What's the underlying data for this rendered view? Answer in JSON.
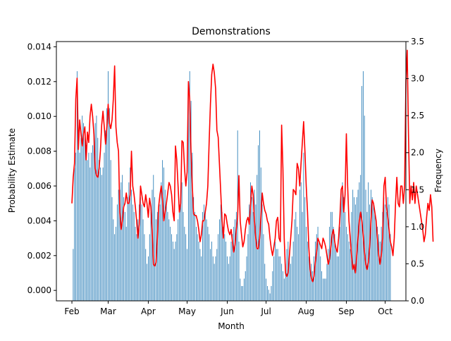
{
  "chart_data": {
    "type": "bar+line",
    "title": "Demonstrations",
    "xlabel": "Month",
    "ylabel_left": "Probability Estimate",
    "ylabel_right": "Frequency",
    "x_tick_labels": [
      "Feb",
      "Mar",
      "Apr",
      "May",
      "Jun",
      "Jul",
      "Aug",
      "Sep",
      "Oct"
    ],
    "x_tick_days": [
      0,
      28,
      59,
      89,
      120,
      150,
      181,
      212,
      242
    ],
    "left_axis": {
      "ylim": [
        -0.0006,
        0.0143
      ],
      "ticks": [
        0.0,
        0.002,
        0.004,
        0.006,
        0.008,
        0.01,
        0.012,
        0.014
      ],
      "tick_labels": [
        "0.000",
        "0.002",
        "0.004",
        "0.006",
        "0.008",
        "0.010",
        "0.012",
        "0.014"
      ]
    },
    "right_axis": {
      "ylim": [
        0,
        3.5
      ],
      "ticks": [
        0.0,
        0.5,
        1.0,
        1.5,
        2.0,
        2.5,
        3.0,
        3.5
      ],
      "tick_labels": [
        "0.0",
        "0.5",
        "1.0",
        "1.5",
        "2.0",
        "2.5",
        "3.0",
        "3.5"
      ]
    },
    "x_day_range": [
      -12,
      258
    ],
    "series": [
      {
        "kind": "bar",
        "axis": "right",
        "color": "#1f77b4",
        "x_day_start": 1,
        "values": [
          0.7,
          1.8,
          2.0,
          3.1,
          2.2,
          2.0,
          2.2,
          2.5,
          2.4,
          2.3,
          2.1,
          1.9,
          2.0,
          1.8,
          2.0,
          2.1,
          2.2,
          2.4,
          2.5,
          2.2,
          1.9,
          1.8,
          1.7,
          1.8,
          2.0,
          2.3,
          2.6,
          3.1,
          2.6,
          1.9,
          1.4,
          1.1,
          0.9,
          1.0,
          1.3,
          1.5,
          1.5,
          1.6,
          1.7,
          1.4,
          1.2,
          1.0,
          1.4,
          1.6,
          1.8,
          1.5,
          1.3,
          1.2,
          1.0,
          0.9,
          1.1,
          1.3,
          1.4,
          1.3,
          1.1,
          0.9,
          0.7,
          0.5,
          0.6,
          0.9,
          1.2,
          1.5,
          1.7,
          1.4,
          1.1,
          1.2,
          1.3,
          1.3,
          1.6,
          1.9,
          1.8,
          1.5,
          1.3,
          1.2,
          1.1,
          1.0,
          0.9,
          0.8,
          0.7,
          0.8,
          0.9,
          1.1,
          1.3,
          1.5,
          1.6,
          1.2,
          1.0,
          0.9,
          0.7,
          2.9,
          3.1,
          2.7,
          2.0,
          1.4,
          1.2,
          1.0,
          0.9,
          0.8,
          0.7,
          0.6,
          1.2,
          1.3,
          1.2,
          1.1,
          1.0,
          0.9,
          0.7,
          0.8,
          0.6,
          0.5,
          0.6,
          0.7,
          0.9,
          1.1,
          1.3,
          1.2,
          1.0,
          0.9,
          0.8,
          0.6,
          0.5,
          0.6,
          0.8,
          0.9,
          1.0,
          1.1,
          1.2,
          2.3,
          0.8,
          0.3,
          0.2,
          0.2,
          0.3,
          0.4,
          0.6,
          0.9,
          1.3,
          1.6,
          1.4,
          1.2,
          1.5,
          1.3,
          1.7,
          2.1,
          2.3,
          1.8,
          1.3,
          0.9,
          0.5,
          0.3,
          0.2,
          0.15,
          0.1,
          0.2,
          0.4,
          0.6,
          0.8,
          0.7,
          0.7,
          0.6,
          0.6,
          0.5,
          0.4,
          0.3,
          0.5,
          0.7,
          0.8,
          0.6,
          0.5,
          0.6,
          0.8,
          1.1,
          1.2,
          1.0,
          0.9,
          1.5,
          1.6,
          1.2,
          2.0,
          1.4,
          1.0,
          0.8,
          0.6,
          0.5,
          0.5,
          0.4,
          0.6,
          0.8,
          0.9,
          1.0,
          0.8,
          0.6,
          0.4,
          0.3,
          0.3,
          0.3,
          0.5,
          0.7,
          1.0,
          1.2,
          1.2,
          1.0,
          0.9,
          0.7,
          0.6,
          0.6,
          1.0,
          1.5,
          1.6,
          1.4,
          1.2,
          1.0,
          0.9,
          0.8,
          0.7,
          1.2,
          1.5,
          1.4,
          1.3,
          1.4,
          1.5,
          1.6,
          1.7,
          2.9,
          3.1,
          2.5,
          1.5,
          1.2,
          1.6,
          1.3,
          1.5,
          1.4,
          1.3,
          1.2,
          1.1,
          1.0,
          0.9,
          0.8,
          1.0,
          1.2,
          1.4,
          1.3,
          1.2,
          1.4,
          1.3,
          0.9
        ]
      },
      {
        "kind": "line",
        "axis": "left",
        "color": "#ff0000",
        "x_day_start": 0,
        "values": [
          0.005,
          0.0065,
          0.0073,
          0.011,
          0.0122,
          0.0081,
          0.0098,
          0.009,
          0.0083,
          0.009,
          0.0094,
          0.0075,
          0.0091,
          0.0085,
          0.01,
          0.0107,
          0.01,
          0.009,
          0.007,
          0.0066,
          0.0065,
          0.007,
          0.008,
          0.0095,
          0.0103,
          0.0094,
          0.0084,
          0.0094,
          0.0107,
          0.0096,
          0.0093,
          0.0098,
          0.011,
          0.0129,
          0.0094,
          0.0085,
          0.008,
          0.0045,
          0.0035,
          0.004,
          0.0048,
          0.005,
          0.0056,
          0.005,
          0.005,
          0.0055,
          0.008,
          0.006,
          0.0055,
          0.0048,
          0.004,
          0.003,
          0.0038,
          0.006,
          0.0055,
          0.005,
          0.0048,
          0.0055,
          0.005,
          0.0042,
          0.0053,
          0.0048,
          0.0034,
          0.0015,
          0.0014,
          0.0016,
          0.003,
          0.0048,
          0.0055,
          0.006,
          0.0052,
          0.004,
          0.0045,
          0.005,
          0.0056,
          0.0062,
          0.006,
          0.0055,
          0.0045,
          0.004,
          0.0083,
          0.0075,
          0.006,
          0.0045,
          0.005,
          0.0086,
          0.0085,
          0.007,
          0.006,
          0.0068,
          0.012,
          0.011,
          0.008,
          0.006,
          0.0044,
          0.0043,
          0.0043,
          0.004,
          0.0035,
          0.0028,
          0.0032,
          0.004,
          0.004,
          0.0045,
          0.005,
          0.006,
          0.0085,
          0.0107,
          0.0124,
          0.013,
          0.0125,
          0.0116,
          0.0092,
          0.0088,
          0.0072,
          0.0056,
          0.004,
          0.003,
          0.0044,
          0.0043,
          0.0038,
          0.0034,
          0.0032,
          0.0035,
          0.0028,
          0.0022,
          0.0026,
          0.0035,
          0.0042,
          0.0066,
          0.004,
          0.0032,
          0.0025,
          0.0028,
          0.0035,
          0.004,
          0.0042,
          0.0038,
          0.005,
          0.006,
          0.0055,
          0.004,
          0.003,
          0.0024,
          0.0024,
          0.003,
          0.0042,
          0.0056,
          0.005,
          0.0046,
          0.0044,
          0.004,
          0.0038,
          0.003,
          0.0024,
          0.002,
          0.0025,
          0.003,
          0.004,
          0.0042,
          0.003,
          0.0028,
          0.0095,
          0.007,
          0.003,
          0.001,
          0.0008,
          0.001,
          0.002,
          0.003,
          0.004,
          0.0058,
          0.0057,
          0.0055,
          0.0073,
          0.007,
          0.006,
          0.0073,
          0.0085,
          0.0097,
          0.008,
          0.006,
          0.0045,
          0.0025,
          0.0012,
          0.0007,
          0.0005,
          0.0008,
          0.0016,
          0.0022,
          0.003,
          0.0028,
          0.0026,
          0.0024,
          0.003,
          0.0028,
          0.0025,
          0.002,
          0.0015,
          0.0018,
          0.0025,
          0.0032,
          0.0035,
          0.0028,
          0.0024,
          0.0022,
          0.003,
          0.0042,
          0.0058,
          0.006,
          0.0045,
          0.0055,
          0.009,
          0.006,
          0.004,
          0.003,
          0.002,
          0.0012,
          0.0015,
          0.001,
          0.002,
          0.003,
          0.004,
          0.0045,
          0.004,
          0.0032,
          0.0022,
          0.0015,
          0.0012,
          0.0016,
          0.0025,
          0.004,
          0.0052,
          0.005,
          0.0045,
          0.004,
          0.003,
          0.002,
          0.0015,
          0.002,
          0.003,
          0.006,
          0.0065,
          0.0048,
          0.0042,
          0.0035,
          0.0028,
          0.0025,
          0.002,
          0.003,
          0.005,
          0.0065,
          0.005,
          0.0048,
          0.006,
          0.006,
          0.005,
          0.006,
          0.012,
          0.0138,
          0.009,
          0.005,
          0.006,
          0.0052,
          0.0062,
          0.005,
          0.006,
          0.0055,
          0.005,
          0.0045,
          0.004,
          0.0035,
          0.0028,
          0.0032,
          0.0042,
          0.005,
          0.0046,
          0.0055,
          0.0048,
          0.0028
        ]
      }
    ],
    "grid": false,
    "legend": "none"
  }
}
